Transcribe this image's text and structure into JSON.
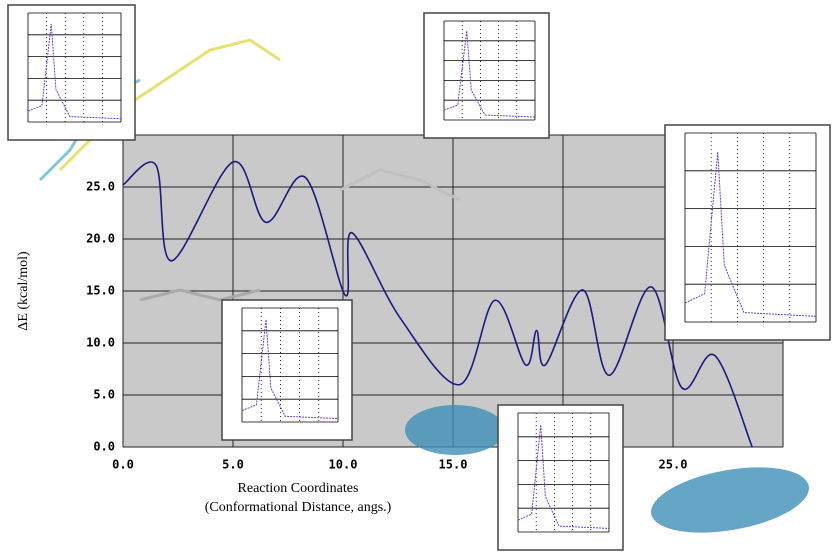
{
  "chart_data": {
    "type": "line",
    "y_label": "ΔE (kcal/mol)",
    "x_label": [
      "Reaction Coordinates",
      "(Conformational Distance, angs.)"
    ],
    "x": [
      0,
      1.5,
      2.2,
      5.0,
      6.5,
      8.3,
      10.1,
      10.4,
      12.6,
      15.3,
      16.9,
      18.3,
      18.8,
      19.2,
      20.9,
      22.1,
      24.0,
      25.4,
      26.9,
      28.6
    ],
    "series": [
      {
        "color": "#1a1a80",
        "values": [
          25.2,
          27.1,
          17.9,
          27.4,
          21.6,
          25.9,
          14.6,
          20.6,
          12.4,
          6.0,
          14.1,
          7.9,
          11.2,
          7.9,
          15.1,
          6.9,
          15.4,
          5.7,
          8.8,
          0
        ]
      }
    ],
    "xlim": [
      0,
      30
    ],
    "ylim": [
      0,
      30
    ],
    "xticks": [
      {
        "value": 0,
        "label": "0.0"
      },
      {
        "value": 5,
        "label": "5.0"
      },
      {
        "value": 10,
        "label": "10.0"
      },
      {
        "value": 15,
        "label": "15.0"
      },
      20,
      {
        "value": 25,
        "label": "25.0"
      },
      30
    ],
    "yticks": [
      {
        "value": 0,
        "label": "0.0"
      },
      {
        "value": 5,
        "label": "5.0"
      },
      {
        "value": 10,
        "label": "10.0"
      },
      {
        "value": 15,
        "label": "15.0"
      },
      {
        "value": 20,
        "label": "20.0"
      },
      {
        "value": 25,
        "label": "25.0"
      },
      30
    ],
    "grid": true
  }
}
